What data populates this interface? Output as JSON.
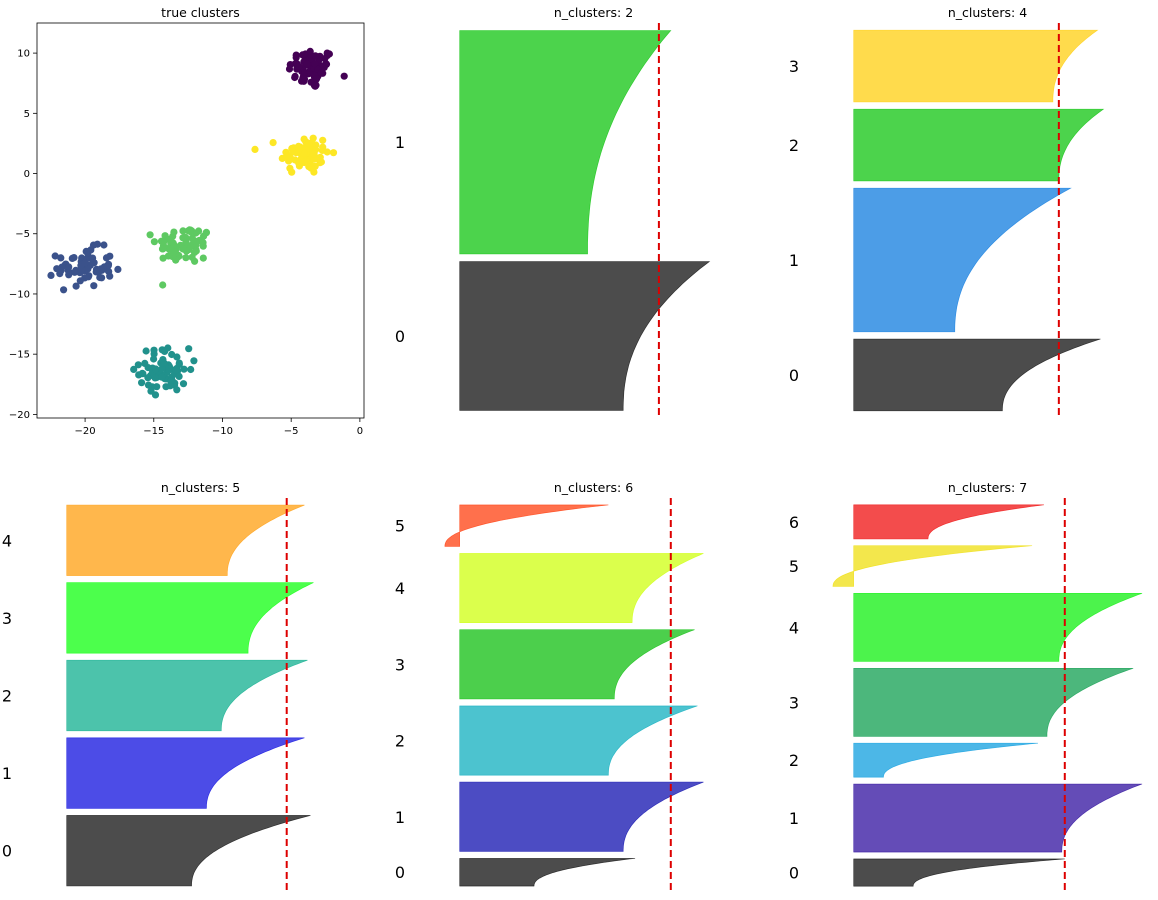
{
  "chart_data": [
    {
      "type": "scatter",
      "title": "true clusters",
      "xlim": [
        -23.5,
        0.3
      ],
      "ylim": [
        -20.3,
        12.5
      ],
      "xticks": [
        -20,
        -15,
        -10,
        -5,
        0
      ],
      "yticks": [
        -20,
        -15,
        -10,
        -5,
        0,
        5,
        10
      ],
      "clusters": [
        {
          "color": "#440154",
          "center": [
            -3.5,
            8.7
          ],
          "spread": [
            0.85,
            0.85
          ],
          "count": 70
        },
        {
          "color": "#fde725",
          "center": [
            -4.0,
            1.6
          ],
          "spread": [
            0.9,
            0.85
          ],
          "count": 70
        },
        {
          "color": "#5ec962",
          "center": [
            -12.8,
            -5.9
          ],
          "spread": [
            1.0,
            0.8
          ],
          "count": 70
        },
        {
          "color": "#3b528b",
          "center": [
            -20.0,
            -7.8
          ],
          "spread": [
            1.0,
            0.8
          ],
          "count": 70
        },
        {
          "color": "#21918c",
          "center": [
            -14.2,
            -16.3
          ],
          "spread": [
            0.9,
            0.9
          ],
          "count": 70
        }
      ]
    },
    {
      "type": "silhouette",
      "title": "n_clusters: 2",
      "threshold": 0.67,
      "clusters": [
        {
          "label": "0",
          "color": "#000000",
          "size": 200,
          "top": 0.84,
          "bottom": 0.55
        },
        {
          "label": "1",
          "color": "#00c000",
          "size": 300,
          "top": 0.71,
          "bottom": 0.43
        }
      ]
    },
    {
      "type": "silhouette",
      "title": "n_clusters: 4",
      "threshold": 0.69,
      "clusters": [
        {
          "label": "0",
          "color": "#000000",
          "size": 100,
          "top": 0.83,
          "bottom": 0.5
        },
        {
          "label": "1",
          "color": "#0074dd",
          "size": 200,
          "top": 0.73,
          "bottom": 0.34
        },
        {
          "label": "2",
          "color": "#00c000",
          "size": 100,
          "top": 0.84,
          "bottom": 0.69
        },
        {
          "label": "3",
          "color": "#ffcc00",
          "size": 100,
          "top": 0.82,
          "bottom": 0.67
        }
      ]
    },
    {
      "type": "silhouette",
      "title": "n_clusters: 5",
      "threshold": 0.74,
      "clusters": [
        {
          "label": "0",
          "color": "#000000",
          "size": 100,
          "top": 0.82,
          "bottom": 0.42
        },
        {
          "label": "1",
          "color": "#0000dd",
          "size": 100,
          "top": 0.8,
          "bottom": 0.47
        },
        {
          "label": "2",
          "color": "#00aa88",
          "size": 100,
          "top": 0.81,
          "bottom": 0.52
        },
        {
          "label": "3",
          "color": "#00ff00",
          "size": 100,
          "top": 0.83,
          "bottom": 0.61
        },
        {
          "label": "4",
          "color": "#ff9900",
          "size": 100,
          "top": 0.8,
          "bottom": 0.54
        }
      ]
    },
    {
      "type": "silhouette",
      "title": "n_clusters: 6",
      "threshold": 0.71,
      "clusters": [
        {
          "label": "0",
          "color": "#000000",
          "size": 40,
          "top": 0.59,
          "bottom": 0.25
        },
        {
          "label": "1",
          "color": "#0000aa",
          "size": 100,
          "top": 0.82,
          "bottom": 0.55
        },
        {
          "label": "2",
          "color": "#00aabb",
          "size": 100,
          "top": 0.8,
          "bottom": 0.5
        },
        {
          "label": "3",
          "color": "#00bb00",
          "size": 100,
          "top": 0.79,
          "bottom": 0.52
        },
        {
          "label": "4",
          "color": "#ccff00",
          "size": 100,
          "top": 0.82,
          "bottom": 0.58
        },
        {
          "label": "5",
          "color": "#ff3300",
          "size": 60,
          "top": 0.5,
          "bottom": -0.05
        }
      ]
    },
    {
      "type": "silhouette",
      "title": "n_clusters: 7",
      "threshold": 0.71,
      "clusters": [
        {
          "label": "0",
          "color": "#000000",
          "size": 40,
          "top": 0.71,
          "bottom": 0.2
        },
        {
          "label": "1",
          "color": "#220099",
          "size": 100,
          "top": 0.97,
          "bottom": 0.7
        },
        {
          "label": "2",
          "color": "#0099dd",
          "size": 50,
          "top": 0.62,
          "bottom": 0.1
        },
        {
          "label": "3",
          "color": "#009944",
          "size": 100,
          "top": 0.94,
          "bottom": 0.65
        },
        {
          "label": "4",
          "color": "#00ee00",
          "size": 100,
          "top": 0.97,
          "bottom": 0.69
        },
        {
          "label": "5",
          "color": "#eedd00",
          "size": 60,
          "top": 0.6,
          "bottom": -0.07
        },
        {
          "label": "6",
          "color": "#ee0000",
          "size": 50,
          "top": 0.64,
          "bottom": 0.25
        }
      ]
    }
  ]
}
